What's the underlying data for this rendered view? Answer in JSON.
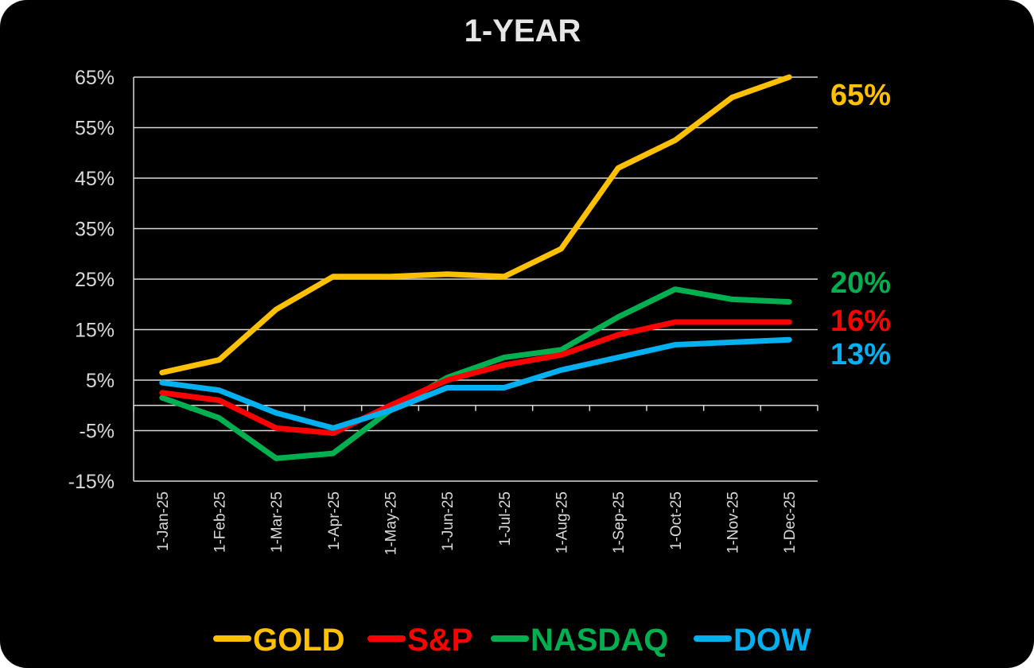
{
  "chart_data": {
    "type": "line",
    "title": "1-YEAR",
    "categories": [
      "1-Jan-25",
      "1-Feb-25",
      "1-Mar-25",
      "1-Apr-25",
      "1-May-25",
      "1-Jun-25",
      "1-Jul-25",
      "1-Aug-25",
      "1-Sep-25",
      "1-Oct-25",
      "1-Nov-25",
      "1-Dec-25"
    ],
    "ylim": [
      -15,
      65
    ],
    "yticks": [
      -15,
      -5,
      5,
      15,
      25,
      35,
      45,
      55,
      65
    ],
    "ytick_labels": [
      "-15%",
      "-5%",
      "5%",
      "15%",
      "25%",
      "35%",
      "45%",
      "55%",
      "65%"
    ],
    "grid": true,
    "legend_position": "bottom",
    "series": [
      {
        "name": "GOLD",
        "color": "#FFC000",
        "end_label": "65%",
        "values": [
          6.5,
          9,
          19,
          25.5,
          25.5,
          26,
          25.5,
          31,
          47,
          52.5,
          61,
          65
        ]
      },
      {
        "name": "S&P",
        "color": "#FF0000",
        "end_label": "16%",
        "values": [
          2.5,
          1,
          -4.5,
          -5.5,
          0,
          5,
          8,
          10,
          14,
          16.5,
          16.5,
          16.5
        ]
      },
      {
        "name": "NASDAQ",
        "color": "#00B050",
        "end_label": "20%",
        "values": [
          1.5,
          -2.5,
          -10.5,
          -9.5,
          -1,
          5.5,
          9.5,
          11,
          17.5,
          23,
          21,
          20.5
        ]
      },
      {
        "name": "DOW",
        "color": "#00B0F0",
        "end_label": "13%",
        "values": [
          4.5,
          3,
          -1.5,
          -4.5,
          -1,
          3.5,
          3.5,
          7,
          9.5,
          12,
          12.5,
          13
        ]
      }
    ]
  }
}
